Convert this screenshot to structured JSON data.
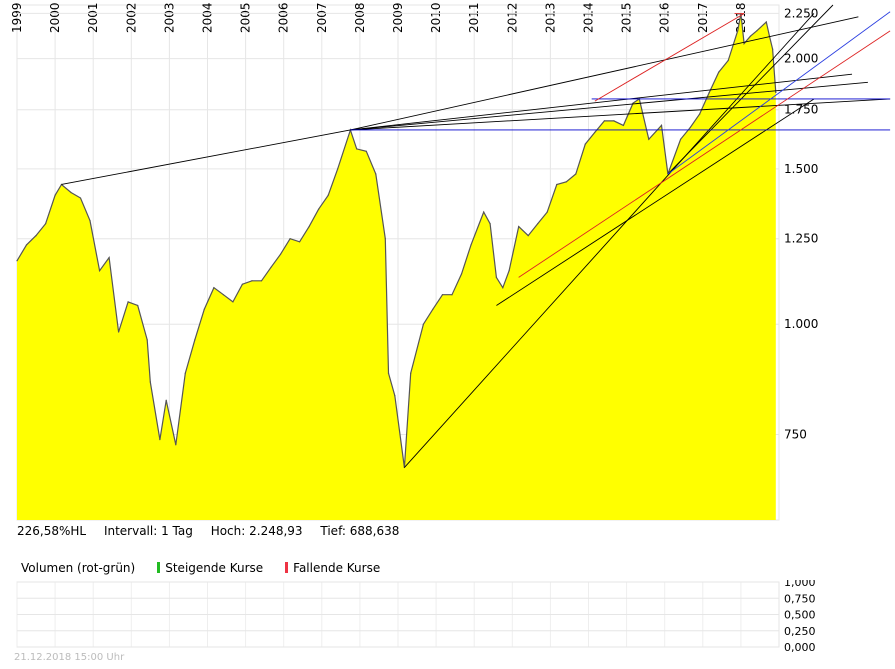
{
  "chart_data": {
    "type": "area",
    "series": [
      {
        "values": [
          [
            "1999-01",
            1180
          ],
          [
            "1999-04",
            1230
          ],
          [
            "1999-07",
            1260
          ],
          [
            "1999-10",
            1300
          ],
          [
            "2000-01",
            1400
          ],
          [
            "2000-03",
            1440
          ],
          [
            "2000-06",
            1410
          ],
          [
            "2000-09",
            1390
          ],
          [
            "2000-12",
            1310
          ],
          [
            "2001-03",
            1150
          ],
          [
            "2001-06",
            1190
          ],
          [
            "2001-09",
            980
          ],
          [
            "2001-12",
            1060
          ],
          [
            "2002-03",
            1050
          ],
          [
            "2002-06",
            960
          ],
          [
            "2002-07",
            860
          ],
          [
            "2002-10",
            740
          ],
          [
            "2002-12",
            820
          ],
          [
            "2003-03",
            730
          ],
          [
            "2003-06",
            880
          ],
          [
            "2003-09",
            960
          ],
          [
            "2003-12",
            1040
          ],
          [
            "2004-03",
            1100
          ],
          [
            "2004-06",
            1080
          ],
          [
            "2004-09",
            1060
          ],
          [
            "2004-12",
            1110
          ],
          [
            "2005-03",
            1120
          ],
          [
            "2005-06",
            1120
          ],
          [
            "2005-09",
            1160
          ],
          [
            "2005-12",
            1200
          ],
          [
            "2006-03",
            1250
          ],
          [
            "2006-06",
            1240
          ],
          [
            "2006-09",
            1290
          ],
          [
            "2006-12",
            1350
          ],
          [
            "2007-03",
            1400
          ],
          [
            "2007-06",
            1500
          ],
          [
            "2007-10",
            1660
          ],
          [
            "2007-12",
            1580
          ],
          [
            "2008-03",
            1570
          ],
          [
            "2008-06",
            1480
          ],
          [
            "2008-09",
            1250
          ],
          [
            "2008-10",
            880
          ],
          [
            "2008-12",
            830
          ],
          [
            "2009-03",
            688
          ],
          [
            "2009-05",
            880
          ],
          [
            "2009-09",
            1000
          ],
          [
            "2009-12",
            1040
          ],
          [
            "2010-03",
            1080
          ],
          [
            "2010-06",
            1080
          ],
          [
            "2010-09",
            1140
          ],
          [
            "2010-12",
            1230
          ],
          [
            "2011-04",
            1340
          ],
          [
            "2011-06",
            1300
          ],
          [
            "2011-08",
            1130
          ],
          [
            "2011-10",
            1100
          ],
          [
            "2011-12",
            1150
          ],
          [
            "2012-03",
            1290
          ],
          [
            "2012-06",
            1260
          ],
          [
            "2012-09",
            1300
          ],
          [
            "2012-12",
            1340
          ],
          [
            "2013-03",
            1440
          ],
          [
            "2013-06",
            1450
          ],
          [
            "2013-09",
            1480
          ],
          [
            "2013-12",
            1600
          ],
          [
            "2014-03",
            1650
          ],
          [
            "2014-06",
            1700
          ],
          [
            "2014-09",
            1700
          ],
          [
            "2014-12",
            1680
          ],
          [
            "2015-03",
            1780
          ],
          [
            "2015-05",
            1800
          ],
          [
            "2015-08",
            1620
          ],
          [
            "2015-12",
            1680
          ],
          [
            "2016-02",
            1480
          ],
          [
            "2016-06",
            1620
          ],
          [
            "2016-09",
            1670
          ],
          [
            "2016-12",
            1730
          ],
          [
            "2017-03",
            1830
          ],
          [
            "2017-06",
            1930
          ],
          [
            "2017-09",
            1990
          ],
          [
            "2017-12",
            2150
          ],
          [
            "2018-01",
            2248.93
          ],
          [
            "2018-02",
            2080
          ],
          [
            "2018-04",
            2120
          ],
          [
            "2018-06",
            2150
          ],
          [
            "2018-09",
            2200
          ],
          [
            "2018-10",
            2120
          ],
          [
            "2018-11",
            2050
          ],
          [
            "2018-12",
            1830
          ]
        ]
      }
    ],
    "x_ticks": [
      "1999",
      "2000",
      "2001",
      "2002",
      "2003",
      "2004",
      "2005",
      "2006",
      "2007",
      "2008",
      "2009",
      "2010",
      "2011",
      "2012",
      "2013",
      "2014",
      "2015",
      "2016",
      "2017",
      "2018"
    ],
    "y_ticks": [
      "750",
      "1.000",
      "1.250",
      "1.500",
      "1.750",
      "2.000",
      "2.250"
    ],
    "y_tick_values": [
      750,
      1000,
      1250,
      1500,
      1750,
      2000,
      2250
    ],
    "y_scale": "log",
    "xlim": [
      "1999-01",
      "2018-12"
    ],
    "ylim": [
      600,
      2300
    ],
    "grid": true,
    "fill_color": "#ffff00",
    "line_color": "#555555",
    "trendlines": [
      {
        "from": [
          "2000-03",
          1440
        ],
        "to": [
          "2007-10",
          1660
        ],
        "color": "#000000"
      },
      {
        "from": [
          "2007-10",
          1660
        ],
        "to": [
          "2021-02",
          2230
        ],
        "color": "#000000"
      },
      {
        "from": [
          "2007-10",
          1660
        ],
        "to": [
          "2020-12",
          1920
        ],
        "color": "#000000"
      },
      {
        "from": [
          "2007-10",
          1660
        ],
        "to": [
          "2021-05",
          1880
        ],
        "color": "#000000"
      },
      {
        "from": [
          "2007-10",
          1660
        ],
        "to": [
          "2021-12",
          1800
        ],
        "color": "#000000"
      },
      {
        "from": [
          "2009-03",
          688
        ],
        "to": [
          "2019-12",
          2250
        ],
        "color": "#000000"
      },
      {
        "from": [
          "2016-02",
          1480
        ],
        "to": [
          "2020-06",
          2300
        ],
        "color": "#000000"
      },
      {
        "from": [
          "2011-08",
          1050
        ],
        "to": [
          "2019-12",
          1800
        ],
        "color": "#000000"
      },
      {
        "from": [
          "2007-10",
          1660
        ],
        "to": [
          "2021-12",
          1660
        ],
        "color": "#0000cc"
      },
      {
        "from": [
          "2014-02",
          1800
        ],
        "to": [
          "2021-12",
          1800
        ],
        "color": "#0000cc"
      },
      {
        "from": [
          "2016-02",
          1480
        ],
        "to": [
          "2021-12",
          2260
        ],
        "color": "#2a3ee0"
      },
      {
        "from": [
          "2012-03",
          1130
        ],
        "to": [
          "2021-12",
          2150
        ],
        "color": "#dd2222"
      },
      {
        "from": [
          "2014-03",
          1790
        ],
        "to": [
          "2018-02",
          2248.93
        ],
        "color": "#dd2222"
      },
      {
        "from": [
          "2017-11",
          2248.93
        ],
        "to": [
          "2018-02",
          2248.93
        ],
        "color": "#dd2222"
      }
    ]
  },
  "volume_chart": {
    "title": "Volumen (rot-grün)",
    "legend": [
      {
        "label": "Steigende Kurse",
        "color": "#22bb22"
      },
      {
        "label": "Fallende Kurse",
        "color": "#ee3344"
      }
    ],
    "y_ticks": [
      "1,000",
      "0,750",
      "0,500",
      "0,250",
      "0,000"
    ],
    "y_tick_values": [
      1,
      0.75,
      0.5,
      0.25,
      0
    ]
  },
  "stats": {
    "hl": "226,58%HL",
    "interval": "Intervall: 1 Tag",
    "high": "Hoch:  2.248,93",
    "low": "Tief:  688,638"
  },
  "footer": "21.12.2018 15:00 Uhr"
}
